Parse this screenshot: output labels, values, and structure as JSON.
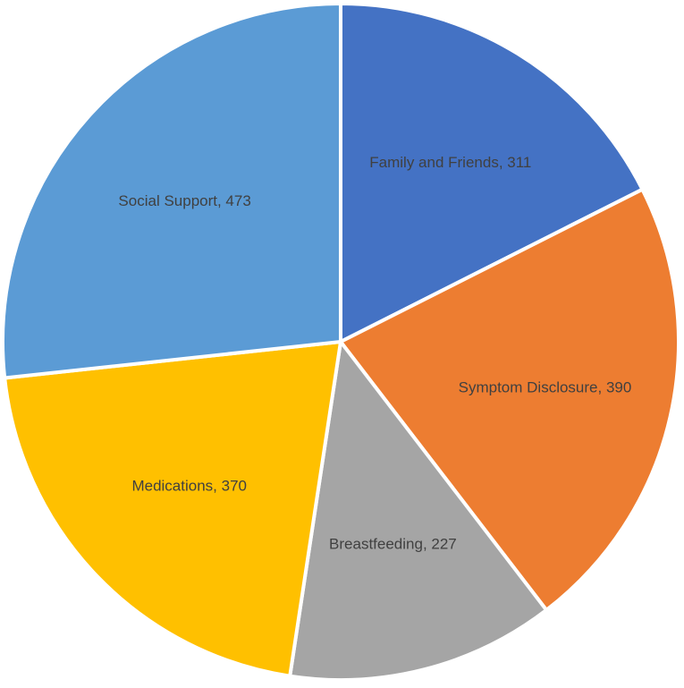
{
  "chart_data": {
    "type": "pie",
    "title": "",
    "start_angle_deg": 0,
    "direction": "clockwise",
    "data_labels": "category, value",
    "slices": [
      {
        "label": "Family and Friends",
        "value": 311,
        "color": "#4472C4"
      },
      {
        "label": "Symptom Disclosure",
        "value": 390,
        "color": "#ED7D31"
      },
      {
        "label": "Breastfeeding",
        "value": 227,
        "color": "#A5A5A5"
      },
      {
        "label": "Medications",
        "value": 370,
        "color": "#FFC000"
      },
      {
        "label": "Social Support",
        "value": 473,
        "color": "#5B9BD5"
      }
    ]
  }
}
